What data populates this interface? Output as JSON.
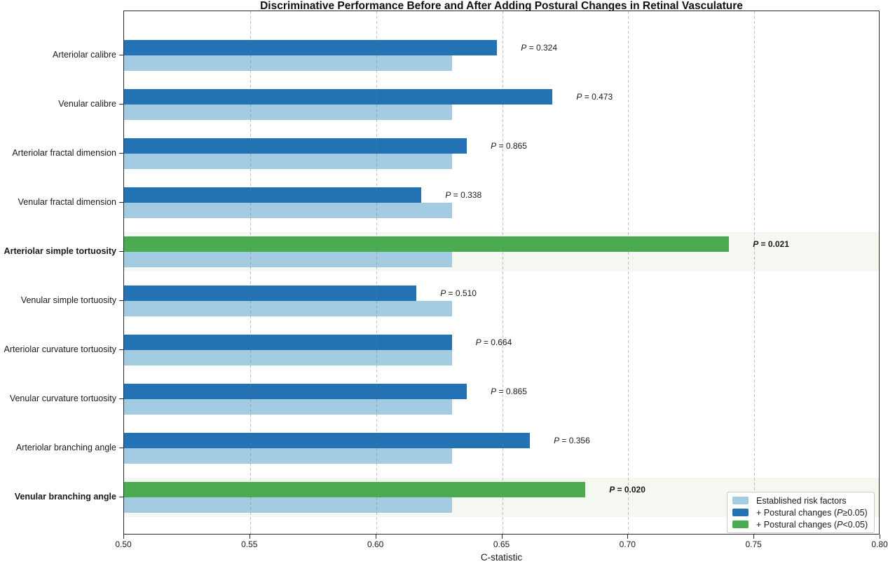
{
  "chart_data": {
    "type": "bar",
    "orientation": "horizontal",
    "title": "Discriminative Performance Before and After Adding Postural Changes in Retinal Vasculature",
    "xlabel": "C-statistic",
    "xlim": [
      0.5,
      0.8
    ],
    "xticks": [
      "0.50",
      "0.55",
      "0.60",
      "0.65",
      "0.70",
      "0.75",
      "0.80"
    ],
    "grid_values": [
      0.55,
      0.6,
      0.65,
      0.7,
      0.75
    ],
    "legend_position": "lower right",
    "series_names": [
      "Established risk factors",
      "+ Postural changes (P≥0.05)",
      "+ Postural changes (P<0.05)"
    ],
    "rows": [
      {
        "label": "Arteriolar calibre",
        "established": 0.63,
        "with_postural": 0.648,
        "p_value": "0.324",
        "significant": false
      },
      {
        "label": "Venular calibre",
        "established": 0.63,
        "with_postural": 0.67,
        "p_value": "0.473",
        "significant": false
      },
      {
        "label": "Arteriolar fractal dimension",
        "established": 0.63,
        "with_postural": 0.636,
        "p_value": "0.865",
        "significant": false
      },
      {
        "label": "Venular fractal dimension",
        "established": 0.63,
        "with_postural": 0.618,
        "p_value": "0.338",
        "significant": false
      },
      {
        "label": "Arteriolar simple tortuosity",
        "established": 0.63,
        "with_postural": 0.74,
        "p_value": "0.021",
        "significant": true
      },
      {
        "label": "Venular simple tortuosity",
        "established": 0.63,
        "with_postural": 0.616,
        "p_value": "0.510",
        "significant": false
      },
      {
        "label": "Arteriolar curvature tortuosity",
        "established": 0.63,
        "with_postural": 0.63,
        "p_value": "0.664",
        "significant": false
      },
      {
        "label": "Venular curvature tortuosity",
        "established": 0.63,
        "with_postural": 0.636,
        "p_value": "0.865",
        "significant": false
      },
      {
        "label": "Arteriolar branching angle",
        "established": 0.63,
        "with_postural": 0.661,
        "p_value": "0.356",
        "significant": false
      },
      {
        "label": "Venular branching angle",
        "established": 0.63,
        "with_postural": 0.683,
        "p_value": "0.020",
        "significant": true
      }
    ],
    "legend": [
      {
        "swatch": "established-swatch",
        "color": "#a3cbe2",
        "parts": [
          [
            "t",
            "Established risk factors"
          ]
        ]
      },
      {
        "swatch": "postural-nonsig-swatch",
        "color": "#2272b4",
        "parts": [
          [
            "t",
            "+ Postural changes ("
          ],
          [
            "i",
            "P"
          ],
          [
            "t",
            "≥0.05)"
          ]
        ]
      },
      {
        "swatch": "postural-sig-swatch",
        "color": "#4bab51",
        "parts": [
          [
            "t",
            "+ Postural changes ("
          ],
          [
            "i",
            "P"
          ],
          [
            "t",
            "<0.05)"
          ]
        ]
      }
    ],
    "colors": {
      "established": "#a3cbe2",
      "postural_nonsignificant": "#2272b4",
      "postural_significant": "#4bab51",
      "significant_row_highlight": "#f4f8f1"
    }
  }
}
